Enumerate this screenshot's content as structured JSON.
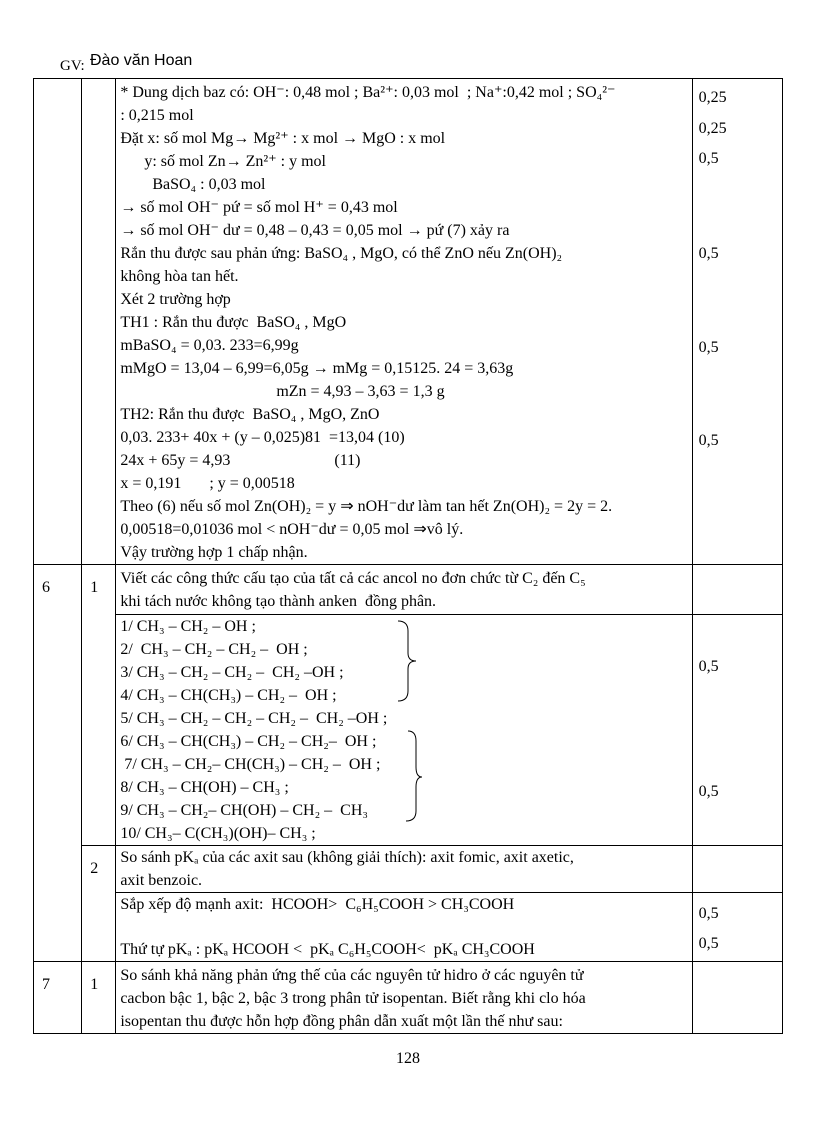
{
  "header": {
    "teacher_label": "GV:",
    "teacher_name": "Đào văn Hoan"
  },
  "table": {
    "rows": [
      {
        "lines": [
          "* Dung dịch baz có: OH⁻: 0,48 mol ; Ba²⁺: 0,03 mol  ; Na⁺:0,42 mol ; SO₄²⁻",
          ": 0,215 mol",
          "Đặt x: số mol Mg→ Mg²⁺ : x mol → MgO : x mol",
          "      y: số mol Zn→ Zn²⁺ : y mol",
          "        BaSO₄ : 0,03 mol",
          "→ số mol OH⁻ pứ = số mol H⁺ = 0,43 mol",
          "→ số mol OH⁻ dư = 0,48 – 0,43 = 0,05 mol → pứ (7) xảy ra",
          "Rắn thu được sau phản ứng: BaSO₄ , MgO, có thể ZnO nếu Zn(OH)₂",
          "không hòa tan hết.",
          "Xét 2 trường hợp",
          "TH1 : Rắn thu được  BaSO₄ , MgO",
          "mBaSO₄ = 0,03. 233=6,99g",
          "mMgO = 13,04 – 6,99=6,05g → mMg = 0,15125. 24 = 3,63g",
          "                                       mZn = 4,93 – 3,63 = 1,3 g",
          "TH2: Rắn thu được  BaSO₄ , MgO, ZnO",
          "0,03. 233+ 40x + (y – 0,025)81  =13,04 (10)",
          "24x + 65y = 4,93                          (11)",
          "x = 0,191       ; y = 0,00518",
          "Theo (6) nếu số mol Zn(OH)₂ = y ⇒ nOH⁻dư làm tan hết Zn(OH)₂ = 2y = 2.",
          "0,00518=0,01036 mol < nOH⁻dư = 0,05 mol ⇒vô lý.",
          "Vậy trường hợp 1 chấp nhận."
        ],
        "scores": [
          "0,25",
          "0,25",
          "0,5",
          "0,5",
          "0,5",
          "0,5"
        ]
      },
      {
        "section": "6",
        "part": "1",
        "lines": [
          "Viết các công thức cấu tạo của tất cả các ancol no đơn chức từ C₂ đến C₅",
          "khi tách nước không tạo thành anken  đồng phân."
        ]
      },
      {
        "lines": [
          "1/ CH₃ – CH₂ – OH ;",
          "2/  CH₃ – CH₂ – CH₂ –  OH ;",
          "3/ CH₃ – CH₂ – CH₂ –  CH₂ –OH ;",
          "4/ CH₃ – CH(CH₃) – CH₂ –  OH ;",
          "5/ CH₃ – CH₂ – CH₂ – CH₂ –  CH₂ –OH ;",
          "6/ CH₃ – CH(CH₃) – CH₂ – CH₂–  OH ;",
          " 7/ CH₃ – CH₂– CH(CH₃) – CH₂ –  OH ;",
          "8/ CH₃ – CH(OH) – CH₃ ;",
          "9/ CH₃ – CH₂– CH(OH) – CH₂ –  CH₃",
          "10/ CH₃– C(CH₃)(OH)– CH₃ ;"
        ],
        "scores": [
          "0,5",
          "0,5"
        ]
      },
      {
        "part": "2",
        "lines": [
          "So sánh pKₐ của các axit sau (không giải thích): axit fomic, axit axetic,",
          "axit benzoic."
        ]
      },
      {
        "lines": [
          "Sắp xếp độ mạnh axit:  HCOOH>  C₆H₅COOH > CH₃COOH",
          "Thứ tự pKₐ : pKₐ HCOOH <  pKₐ C₆H₅COOH<  pKₐ CH₃COOH"
        ],
        "scores": [
          "0,5",
          "0,5"
        ]
      },
      {
        "section": "7",
        "part": "1",
        "lines": [
          "So sánh khả năng phản ứng thế của các nguyên tử hidro ở các nguyên tử",
          "cacbon bậc 1, bậc 2, bậc 3 trong phân tử isopentan. Biết rằng khi clo hóa",
          "isopentan thu được hỗn hợp đồng phân dẫn xuất một lần thế như sau:"
        ]
      }
    ]
  },
  "page_number": "128"
}
